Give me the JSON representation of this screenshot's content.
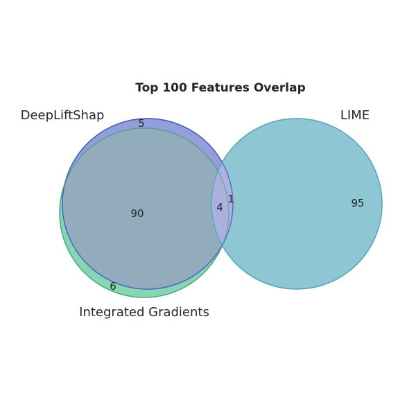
{
  "title": "Top 100 Features Overlap",
  "sets": [
    {
      "name": "DeepLiftShap",
      "color": "#4a5cc0"
    },
    {
      "name": "Integrated Gradients",
      "color": "#2fb36a"
    },
    {
      "name": "LIME",
      "color": "#2a96b0"
    }
  ],
  "regions": {
    "deepliftshap_only": "5",
    "integrated_gradients_only": "6",
    "deepliftshap_and_integrated_gradients": "90",
    "all_three": "4",
    "deepliftshap_and_lime": "1",
    "lime_only": "95"
  }
}
